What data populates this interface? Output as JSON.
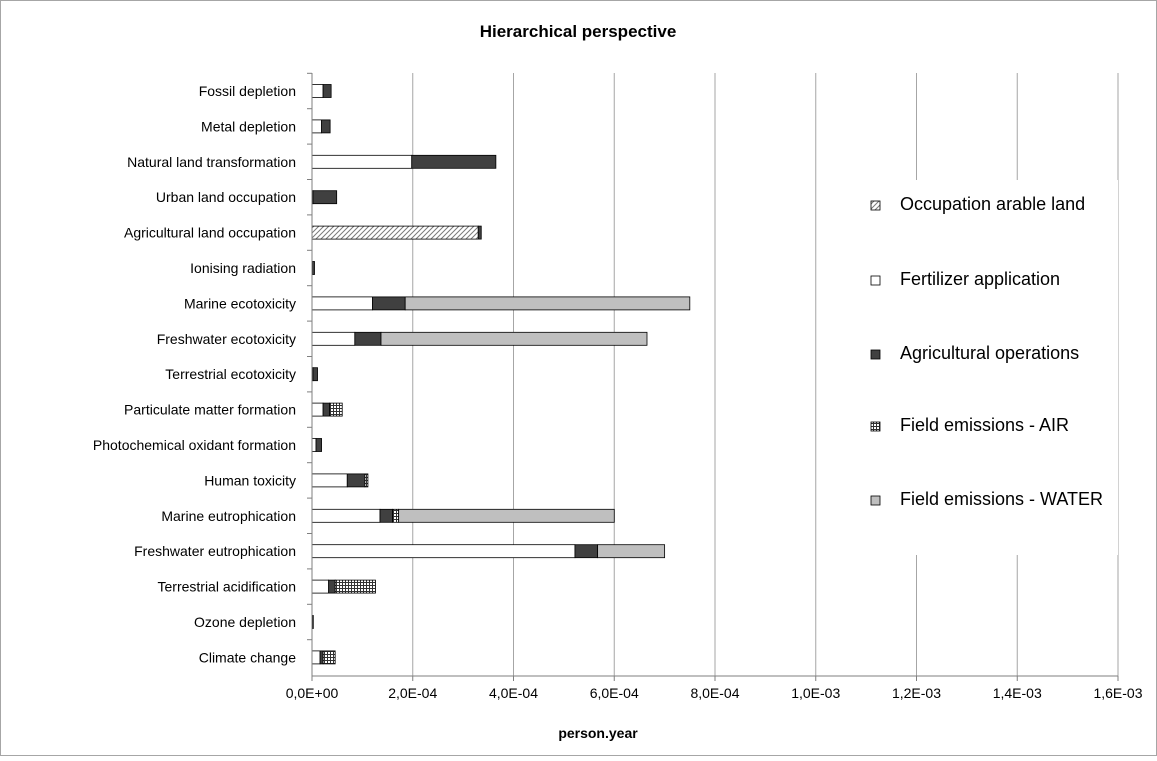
{
  "chart_data": {
    "type": "bar",
    "orientation": "horizontal",
    "stacked": true,
    "title": "Hierarchical perspective",
    "xlabel": "person.year",
    "ylabel": "",
    "xlim": [
      0,
      0.0016
    ],
    "x_ticks": [
      0,
      0.0002,
      0.0004,
      0.0006,
      0.0008,
      0.001,
      0.0012,
      0.0014,
      0.0016
    ],
    "x_tick_labels": [
      "0,0E+00",
      "2,0E-04",
      "4,0E-04",
      "6,0E-04",
      "8,0E-04",
      "1,0E-03",
      "1,2E-03",
      "1,4E-03",
      "1,6E-03"
    ],
    "grid": "vertical major gridlines",
    "legend_position": "right",
    "categories": [
      "Fossil depletion",
      "Metal depletion",
      "Natural land transformation",
      "Urban land occupation",
      "Agricultural land occupation",
      "Ionising radiation",
      "Marine ecotoxicity",
      "Freshwater ecotoxicity",
      "Terrestrial ecotoxicity",
      "Particulate matter formation",
      "Photochemical oxidant formation",
      "Human toxicity",
      "Marine eutrophication",
      "Freshwater eutrophication",
      "Terrestrial acidification",
      "Ozone depletion",
      "Climate change"
    ],
    "series": [
      {
        "name": "Occupation arable land",
        "pattern": "diagonal-hatch",
        "values": [
          0,
          0,
          0,
          0,
          0.00033,
          0,
          0,
          0,
          0,
          0,
          0,
          0,
          0,
          0,
          0,
          0,
          0
        ]
      },
      {
        "name": "Fertilizer application",
        "pattern": "white",
        "values": [
          2.2e-05,
          1.9e-05,
          0.000198,
          2e-06,
          0,
          1e-06,
          0.00012,
          8.5e-05,
          2e-06,
          2.2e-05,
          8e-06,
          7e-05,
          0.000135,
          0.000522,
          3.3e-05,
          1e-06,
          1.6e-05
        ]
      },
      {
        "name": "Agricultural operations",
        "pattern": "dark",
        "values": [
          1.6e-05,
          1.7e-05,
          0.000167,
          4.7e-05,
          6e-06,
          4e-06,
          6.5e-05,
          5.2e-05,
          9e-06,
          1.3e-05,
          1.1e-05,
          3.5e-05,
          2.5e-05,
          4.5e-05,
          1.3e-05,
          1e-06,
          6e-06
        ]
      },
      {
        "name": "Field emissions - AIR",
        "pattern": "cross-hatch",
        "values": [
          0,
          0,
          0,
          0,
          0,
          0,
          0,
          0,
          0,
          2.5e-05,
          0,
          6e-06,
          1.2e-05,
          0,
          8e-05,
          0,
          2.4e-05
        ]
      },
      {
        "name": "Field emissions - WATER",
        "pattern": "light-gray",
        "values": [
          0,
          0,
          0,
          0,
          0,
          0,
          0.000565,
          0.000528,
          0,
          0,
          0,
          0,
          0.000428,
          0.000133,
          0,
          0,
          0
        ]
      }
    ]
  }
}
